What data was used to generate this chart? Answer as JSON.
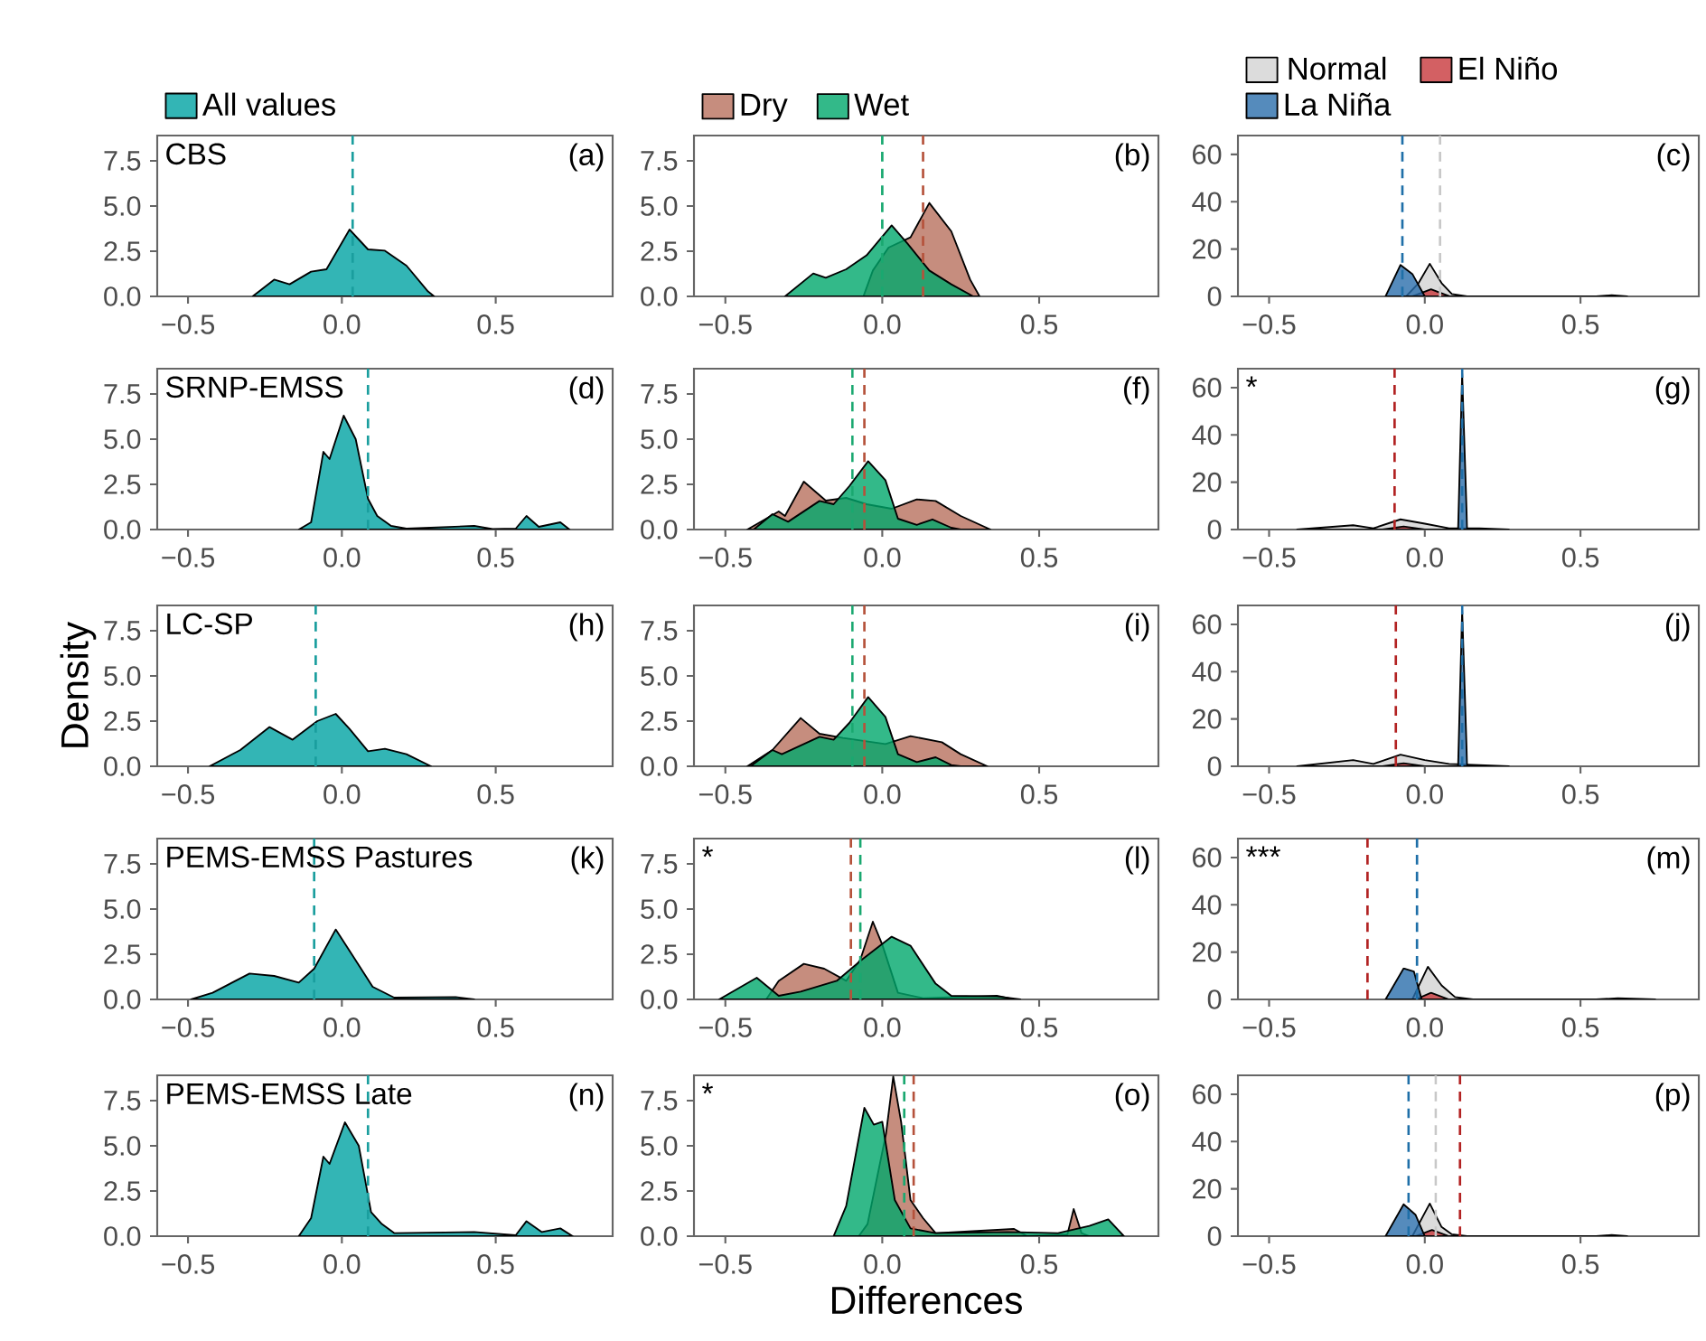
{
  "chart_data": [
    {
      "type": "area",
      "title": "CBS",
      "annotations": [
        "(a)"
      ],
      "legend": "top",
      "xlim": [
        -0.6,
        0.88
      ],
      "ylim": [
        0,
        8.9
      ],
      "xticks": [
        {
          "value": -0.5,
          "label": "−0.5"
        },
        {
          "value": 0,
          "label": "0.0"
        },
        {
          "value": 0.5,
          "label": "0.5"
        }
      ],
      "yticks": [
        {
          "value": 0,
          "label": "0.0"
        },
        {
          "value": 2.5,
          "label": "2.5"
        },
        {
          "value": 5,
          "label": "5.0"
        },
        {
          "value": 7.5,
          "label": "7.5"
        }
      ],
      "series": [
        {
          "name": "All values",
          "color": "#00a3a3",
          "x": [
            -0.29,
            -0.22,
            -0.17,
            -0.1,
            -0.05,
            0.025,
            0.085,
            0.14,
            0.21,
            0.28,
            0.3
          ],
          "values": [
            0,
            0.93,
            0.67,
            1.37,
            1.5,
            3.7,
            2.6,
            2.53,
            1.7,
            0.27,
            0
          ]
        }
      ],
      "ref_lines": [
        {
          "axis": "x",
          "value": 0.035,
          "color": "#1a9e9e",
          "line_style": "dashed"
        }
      ]
    },
    {
      "type": "area",
      "annotations": [
        "(b)"
      ],
      "legend": "top",
      "xlim": [
        -0.6,
        0.88
      ],
      "ylim": [
        0,
        8.9
      ],
      "xticks": [
        {
          "value": -0.5,
          "label": "−0.5"
        },
        {
          "value": 0,
          "label": "0.0"
        },
        {
          "value": 0.5,
          "label": "0.5"
        }
      ],
      "yticks": [
        {
          "value": 0,
          "label": "0.0"
        },
        {
          "value": 2.5,
          "label": "2.5"
        },
        {
          "value": 5,
          "label": "5.0"
        },
        {
          "value": 7.5,
          "label": "7.5"
        }
      ],
      "series": [
        {
          "name": "Dry",
          "color": "#b8705e",
          "x": [
            -0.06,
            -0.03,
            0.02,
            0.09,
            0.15,
            0.22,
            0.28,
            0.31
          ],
          "values": [
            0,
            1.43,
            2.7,
            3.27,
            5.17,
            3.6,
            0.93,
            0
          ]
        },
        {
          "name": "Wet",
          "color": "#00a86b",
          "x": [
            -0.31,
            -0.22,
            -0.18,
            -0.115,
            -0.05,
            0.03,
            0.08,
            0.15,
            0.22,
            0.29
          ],
          "values": [
            0,
            1.27,
            1.03,
            1.5,
            2.27,
            3.93,
            2.93,
            1.43,
            0.67,
            0
          ]
        }
      ],
      "ref_lines": [
        {
          "axis": "x",
          "value": 0.13,
          "color": "#b5523b",
          "line_style": "dashed"
        },
        {
          "axis": "x",
          "value": 0.0,
          "color": "#1aa870",
          "line_style": "dashed"
        }
      ]
    },
    {
      "type": "area",
      "annotations": [
        "(c)"
      ],
      "legend": "top",
      "xlim": [
        -0.6,
        0.88
      ],
      "ylim": [
        0,
        68
      ],
      "xticks": [
        {
          "value": -0.5,
          "label": "−0.5"
        },
        {
          "value": 0,
          "label": "0.0"
        },
        {
          "value": 0.5,
          "label": "0.5"
        }
      ],
      "yticks": [
        0,
        20,
        40,
        60
      ],
      "series": [
        {
          "name": "Normal",
          "color": "#d3d3d3",
          "x": [
            -0.06,
            -0.02,
            0.016,
            0.054,
            0.087,
            0.136,
            0.55,
            0.6,
            0.65
          ],
          "values": [
            0,
            5.6,
            13.8,
            5.6,
            1.0,
            0,
            0,
            0.5,
            0
          ]
        },
        {
          "name": "El Niño",
          "color": "#c8383c",
          "x": [
            -0.04,
            0.02,
            0.08
          ],
          "values": [
            0,
            3.0,
            0
          ]
        },
        {
          "name": "La Niña",
          "color": "#2a6eab",
          "x": [
            -0.126,
            -0.078,
            -0.04,
            0.0
          ],
          "values": [
            0,
            13.3,
            9.5,
            0
          ]
        }
      ],
      "ref_lines": [
        {
          "axis": "x",
          "value": -0.072,
          "color": "#1f6fa8",
          "line_style": "dashed"
        },
        {
          "axis": "x",
          "value": 0.049,
          "color": "#c8c8c8",
          "line_style": "dashed"
        }
      ]
    },
    {
      "type": "area",
      "title": "SRNP-EMSS",
      "annotations": [
        "(d)"
      ],
      "xlim": [
        -0.6,
        0.88
      ],
      "ylim": [
        0,
        8.9
      ],
      "xticks": [
        {
          "value": -0.5,
          "label": "−0.5"
        },
        {
          "value": 0,
          "label": "0.0"
        },
        {
          "value": 0.5,
          "label": "0.5"
        }
      ],
      "yticks": [
        {
          "value": 0,
          "label": "0.0"
        },
        {
          "value": 2.5,
          "label": "2.5"
        },
        {
          "value": 5,
          "label": "5.0"
        },
        {
          "value": 7.5,
          "label": "7.5"
        }
      ],
      "series": [
        {
          "color": "#00a3a3",
          "x": [
            -0.14,
            -0.1,
            -0.06,
            -0.04,
            0.006,
            0.045,
            0.085,
            0.115,
            0.16,
            0.21,
            0.43,
            0.49,
            0.565,
            0.6,
            0.64,
            0.71,
            0.74
          ],
          "values": [
            0,
            0.4,
            4.3,
            3.9,
            6.3,
            5.0,
            1.7,
            0.75,
            0.2,
            0.05,
            0.2,
            0.03,
            0.05,
            0.75,
            0.15,
            0.4,
            0
          ]
        }
      ],
      "ref_lines": [
        {
          "axis": "x",
          "value": 0.085,
          "color": "#1a9e9e",
          "line_style": "dashed"
        }
      ]
    },
    {
      "type": "area",
      "annotations": [
        "(f)"
      ],
      "xlim": [
        -0.6,
        0.88
      ],
      "ylim": [
        0,
        8.9
      ],
      "xticks": [
        {
          "value": -0.5,
          "label": "−0.5"
        },
        {
          "value": 0,
          "label": "0.0"
        },
        {
          "value": 0.5,
          "label": "0.5"
        }
      ],
      "yticks": [
        {
          "value": 0,
          "label": "0.0"
        },
        {
          "value": 2.5,
          "label": "2.5"
        },
        {
          "value": 5,
          "label": "5.0"
        },
        {
          "value": 7.5,
          "label": "7.5"
        }
      ],
      "series": [
        {
          "color": "#b8705e",
          "x": [
            -0.43,
            -0.33,
            -0.31,
            -0.25,
            -0.18,
            -0.115,
            -0.05,
            0.03,
            0.11,
            0.17,
            0.25,
            0.345
          ],
          "values": [
            0,
            1.0,
            0.75,
            2.65,
            1.6,
            1.75,
            1.4,
            1.15,
            1.67,
            1.58,
            0.75,
            0
          ]
        },
        {
          "color": "#00a86b",
          "x": [
            -0.41,
            -0.35,
            -0.3,
            -0.2,
            -0.155,
            -0.105,
            -0.045,
            0.01,
            0.05,
            0.11,
            0.16,
            0.22,
            0.25
          ],
          "values": [
            0,
            0.85,
            0.43,
            1.58,
            1.4,
            2.4,
            3.78,
            2.73,
            0.6,
            0.26,
            0.56,
            0.1,
            0
          ]
        }
      ],
      "ref_lines": [
        {
          "axis": "x",
          "value": -0.057,
          "color": "#b5523b",
          "line_style": "dashed"
        },
        {
          "axis": "x",
          "value": -0.095,
          "color": "#1aa870",
          "line_style": "dashed"
        }
      ]
    },
    {
      "type": "area",
      "annotations": [
        "(g)",
        "*"
      ],
      "xlim": [
        -0.6,
        0.88
      ],
      "ylim": [
        0,
        68
      ],
      "xticks": [
        {
          "value": -0.5,
          "label": "−0.5"
        },
        {
          "value": 0,
          "label": "0.0"
        },
        {
          "value": 0.5,
          "label": "0.5"
        }
      ],
      "yticks": [
        0,
        20,
        40,
        60
      ],
      "series": [
        {
          "color": "#d3d3d3",
          "x": [
            -0.41,
            -0.23,
            -0.165,
            -0.078,
            0,
            0.078,
            0.175,
            0.27
          ],
          "values": [
            0,
            1.8,
            0.5,
            4.3,
            2.5,
            0.5,
            0.5,
            0
          ]
        },
        {
          "color": "#c8383c",
          "x": [
            -0.136,
            -0.068,
            0
          ],
          "values": [
            0,
            1.3,
            0
          ]
        },
        {
          "color": "#2a6eab",
          "x": [
            0.107,
            0.12,
            0.136
          ],
          "values": [
            0,
            66,
            0
          ]
        }
      ],
      "ref_lines": [
        {
          "axis": "x",
          "value": -0.097,
          "color": "#b22222",
          "line_style": "dashed"
        },
        {
          "axis": "x",
          "value": 0.12,
          "color": "#1f6fa8",
          "line_style": "dashed"
        }
      ]
    },
    {
      "type": "area",
      "title": "LC-SP",
      "ylabel": "Density",
      "annotations": [
        "(h)"
      ],
      "xlim": [
        -0.6,
        0.88
      ],
      "ylim": [
        0,
        8.9
      ],
      "xticks": [
        {
          "value": -0.5,
          "label": "−0.5"
        },
        {
          "value": 0,
          "label": "0.0"
        },
        {
          "value": 0.5,
          "label": "0.5"
        }
      ],
      "yticks": [
        {
          "value": 0,
          "label": "0.0"
        },
        {
          "value": 2.5,
          "label": "2.5"
        },
        {
          "value": 5,
          "label": "5.0"
        },
        {
          "value": 7.5,
          "label": "7.5"
        }
      ],
      "series": [
        {
          "color": "#00a3a3",
          "x": [
            -0.43,
            -0.33,
            -0.235,
            -0.16,
            -0.08,
            -0.02,
            0.025,
            0.085,
            0.14,
            0.21,
            0.29
          ],
          "values": [
            0,
            0.9,
            2.17,
            1.47,
            2.5,
            2.9,
            2.07,
            0.83,
            0.97,
            0.67,
            0
          ]
        }
      ],
      "ref_lines": [
        {
          "axis": "x",
          "value": -0.085,
          "color": "#1a9e9e",
          "line_style": "dashed"
        }
      ]
    },
    {
      "type": "area",
      "annotations": [
        "(i)"
      ],
      "xlim": [
        -0.6,
        0.88
      ],
      "ylim": [
        0,
        8.9
      ],
      "xticks": [
        {
          "value": -0.5,
          "label": "−0.5"
        },
        {
          "value": 0,
          "label": "0.0"
        },
        {
          "value": 0.5,
          "label": "0.5"
        }
      ],
      "yticks": [
        {
          "value": 0,
          "label": "0.0"
        },
        {
          "value": 2.5,
          "label": "2.5"
        },
        {
          "value": 5,
          "label": "5.0"
        },
        {
          "value": 7.5,
          "label": "7.5"
        }
      ],
      "series": [
        {
          "color": "#b8705e",
          "x": [
            -0.43,
            -0.35,
            -0.26,
            -0.2,
            -0.125,
            0.01,
            0.09,
            0.19,
            0.25,
            0.335
          ],
          "values": [
            0,
            0.9,
            2.67,
            1.8,
            1.57,
            1.23,
            1.67,
            1.33,
            0.67,
            0
          ]
        },
        {
          "color": "#00a86b",
          "x": [
            -0.42,
            -0.35,
            -0.32,
            -0.2,
            -0.155,
            -0.105,
            -0.045,
            0.01,
            0.05,
            0.11,
            0.17,
            0.22,
            0.25
          ],
          "values": [
            0,
            0.9,
            0.67,
            1.63,
            1.47,
            2.4,
            3.83,
            2.73,
            0.67,
            0.23,
            0.5,
            0.07,
            0
          ]
        }
      ],
      "ref_lines": [
        {
          "axis": "x",
          "value": -0.057,
          "color": "#b5523b",
          "line_style": "dashed"
        },
        {
          "axis": "x",
          "value": -0.095,
          "color": "#1aa870",
          "line_style": "dashed"
        }
      ]
    },
    {
      "type": "area",
      "annotations": [
        "(j)"
      ],
      "xlim": [
        -0.6,
        0.88
      ],
      "ylim": [
        0,
        68
      ],
      "xticks": [
        {
          "value": -0.5,
          "label": "−0.5"
        },
        {
          "value": 0,
          "label": "0.0"
        },
        {
          "value": 0.5,
          "label": "0.5"
        }
      ],
      "yticks": [
        0,
        20,
        40,
        60
      ],
      "series": [
        {
          "color": "#d3d3d3",
          "x": [
            -0.41,
            -0.23,
            -0.165,
            -0.078,
            0,
            0.078,
            0.27
          ],
          "values": [
            0,
            2.6,
            1.0,
            4.9,
            2.6,
            1.0,
            0
          ]
        },
        {
          "color": "#c8383c",
          "x": [
            -0.136,
            -0.068,
            0
          ],
          "values": [
            0,
            1.3,
            0
          ]
        },
        {
          "color": "#2a6eab",
          "x": [
            0.107,
            0.12,
            0.136
          ],
          "values": [
            0,
            66,
            0
          ]
        }
      ],
      "ref_lines": [
        {
          "axis": "x",
          "value": -0.093,
          "color": "#b22222",
          "line_style": "dashed"
        },
        {
          "axis": "x",
          "value": 0.12,
          "color": "#1f6fa8",
          "line_style": "dashed"
        }
      ]
    },
    {
      "type": "area",
      "title": "PEMS-EMSS Pastures",
      "annotations": [
        "(k)"
      ],
      "xlim": [
        -0.6,
        0.88
      ],
      "ylim": [
        0,
        8.9
      ],
      "xticks": [
        {
          "value": -0.5,
          "label": "−0.5"
        },
        {
          "value": 0,
          "label": "0.0"
        },
        {
          "value": 0.5,
          "label": "0.5"
        }
      ],
      "yticks": [
        {
          "value": 0,
          "label": "0.0"
        },
        {
          "value": 2.5,
          "label": "2.5"
        },
        {
          "value": 5,
          "label": "5.0"
        },
        {
          "value": 7.5,
          "label": "7.5"
        }
      ],
      "series": [
        {
          "color": "#00a3a3",
          "x": [
            -0.49,
            -0.42,
            -0.3,
            -0.22,
            -0.14,
            -0.09,
            -0.02,
            0.035,
            0.1,
            0.17,
            0.37,
            0.43
          ],
          "values": [
            0,
            0.37,
            1.43,
            1.3,
            0.93,
            1.7,
            3.87,
            2.43,
            0.7,
            0.1,
            0.13,
            0
          ]
        }
      ],
      "ref_lines": [
        {
          "axis": "x",
          "value": -0.09,
          "color": "#1a9e9e",
          "line_style": "dashed"
        }
      ]
    },
    {
      "type": "area",
      "annotations": [
        "(l)",
        "*"
      ],
      "xlim": [
        -0.6,
        0.88
      ],
      "ylim": [
        0,
        8.9
      ],
      "xticks": [
        {
          "value": -0.5,
          "label": "−0.5"
        },
        {
          "value": 0,
          "label": "0.0"
        },
        {
          "value": 0.5,
          "label": "0.5"
        }
      ],
      "yticks": [
        {
          "value": 0,
          "label": "0.0"
        },
        {
          "value": 2.5,
          "label": "2.5"
        },
        {
          "value": 5,
          "label": "5.0"
        },
        {
          "value": 7.5,
          "label": "7.5"
        }
      ],
      "series": [
        {
          "color": "#b8705e",
          "x": [
            -0.37,
            -0.33,
            -0.25,
            -0.185,
            -0.115,
            -0.07,
            -0.03,
            0.0,
            0.05,
            0.13,
            0.365,
            0.42
          ],
          "values": [
            0,
            1.03,
            1.97,
            1.7,
            1.03,
            2.2,
            4.3,
            3.03,
            0.37,
            0.07,
            0.2,
            0
          ]
        },
        {
          "color": "#00a86b",
          "x": [
            -0.52,
            -0.4,
            -0.33,
            -0.26,
            -0.145,
            -0.065,
            0.03,
            0.09,
            0.17,
            0.22,
            0.365,
            0.44
          ],
          "values": [
            0,
            1.2,
            0.2,
            0.43,
            1.03,
            2.2,
            3.47,
            2.97,
            0.87,
            0.2,
            0.17,
            0
          ]
        }
      ],
      "ref_lines": [
        {
          "axis": "x",
          "value": -0.1,
          "color": "#b5523b",
          "line_style": "dashed"
        },
        {
          "axis": "x",
          "value": -0.07,
          "color": "#1aa870",
          "line_style": "dashed"
        }
      ]
    },
    {
      "type": "area",
      "annotations": [
        "(m)",
        "***"
      ],
      "xlim": [
        -0.6,
        0.88
      ],
      "ylim": [
        0,
        68
      ],
      "xticks": [
        {
          "value": -0.5,
          "label": "−0.5"
        },
        {
          "value": 0,
          "label": "0.0"
        },
        {
          "value": 0.5,
          "label": "0.5"
        }
      ],
      "yticks": [
        0,
        20,
        40,
        60
      ],
      "series": [
        {
          "color": "#d3d3d3",
          "x": [
            -0.04,
            0.01,
            0.054,
            0.097,
            0.155,
            0.55,
            0.62,
            0.74
          ],
          "values": [
            0,
            13.8,
            5.9,
            1.0,
            0,
            0,
            0.5,
            0
          ]
        },
        {
          "color": "#c8383c",
          "x": [
            -0.03,
            0.02,
            0.078
          ],
          "values": [
            0,
            2.8,
            0
          ]
        },
        {
          "color": "#2a6eab",
          "x": [
            -0.126,
            -0.068,
            -0.035,
            -0.01
          ],
          "values": [
            0,
            13.1,
            11.8,
            0
          ]
        }
      ],
      "ref_lines": [
        {
          "axis": "x",
          "value": -0.184,
          "color": "#b22222",
          "line_style": "dashed"
        },
        {
          "axis": "x",
          "value": -0.025,
          "color": "#1f6fa8",
          "line_style": "dashed"
        }
      ]
    },
    {
      "type": "area",
      "title": "PEMS-EMSS Late",
      "annotations": [
        "(n)"
      ],
      "xlim": [
        -0.6,
        0.88
      ],
      "ylim": [
        0,
        8.9
      ],
      "xticks": [
        {
          "value": -0.5,
          "label": "−0.5"
        },
        {
          "value": 0,
          "label": "0.0"
        },
        {
          "value": 0.5,
          "label": "0.5"
        }
      ],
      "yticks": [
        {
          "value": 0,
          "label": "0.0"
        },
        {
          "value": 2.5,
          "label": "2.5"
        },
        {
          "value": 5,
          "label": "5.0"
        },
        {
          "value": 7.5,
          "label": "7.5"
        }
      ],
      "series": [
        {
          "color": "#00a3a3",
          "x": [
            -0.14,
            -0.1,
            -0.06,
            -0.04,
            0.01,
            0.055,
            0.095,
            0.13,
            0.17,
            0.43,
            0.565,
            0.6,
            0.65,
            0.71,
            0.75
          ],
          "values": [
            0,
            1.0,
            4.4,
            4.0,
            6.3,
            5.0,
            1.33,
            0.67,
            0.17,
            0.23,
            0.05,
            0.83,
            0.23,
            0.43,
            0
          ]
        }
      ],
      "ref_lines": [
        {
          "axis": "x",
          "value": 0.085,
          "color": "#1a9e9e",
          "line_style": "dashed"
        }
      ]
    },
    {
      "type": "area",
      "xlabel": "Differences",
      "annotations": [
        "(o)",
        "*"
      ],
      "xlim": [
        -0.6,
        0.88
      ],
      "ylim": [
        0,
        8.9
      ],
      "xticks": [
        {
          "value": -0.5,
          "label": "−0.5"
        },
        {
          "value": 0,
          "label": "0.0"
        },
        {
          "value": 0.5,
          "label": "0.5"
        }
      ],
      "yticks": [
        {
          "value": 0,
          "label": "0.0"
        },
        {
          "value": 2.5,
          "label": "2.5"
        },
        {
          "value": 5,
          "label": "5.0"
        },
        {
          "value": 7.5,
          "label": "7.5"
        }
      ],
      "series": [
        {
          "color": "#b8705e",
          "x": [
            -0.075,
            -0.047,
            0.012,
            0.035,
            0.06,
            0.09,
            0.13,
            0.17,
            0.42,
            0.46,
            0.59,
            0.61,
            0.635,
            0.66
          ],
          "values": [
            0,
            0.67,
            5.67,
            8.83,
            6.33,
            2.0,
            1.0,
            0.17,
            0.4,
            0.02,
            0.1,
            1.5,
            0.17,
            0
          ]
        },
        {
          "color": "#00a86b",
          "x": [
            -0.155,
            -0.115,
            -0.057,
            -0.027,
            0.0,
            0.04,
            0.09,
            0.17,
            0.4,
            0.56,
            0.66,
            0.72,
            0.77
          ],
          "values": [
            0,
            1.67,
            7.1,
            6.17,
            6.33,
            2.0,
            0.43,
            0.17,
            0.23,
            0.17,
            0.57,
            0.93,
            0
          ]
        }
      ],
      "ref_lines": [
        {
          "axis": "x",
          "value": 0.1,
          "color": "#b5523b",
          "line_style": "dashed"
        },
        {
          "axis": "x",
          "value": 0.07,
          "color": "#1aa870",
          "line_style": "dashed"
        }
      ]
    },
    {
      "type": "area",
      "annotations": [
        "(p)"
      ],
      "xlim": [
        -0.6,
        0.88
      ],
      "ylim": [
        0,
        68
      ],
      "xticks": [
        {
          "value": -0.5,
          "label": "−0.5"
        },
        {
          "value": 0,
          "label": "0.0"
        },
        {
          "value": 0.5,
          "label": "0.5"
        }
      ],
      "yticks": [
        0,
        20,
        40,
        60
      ],
      "series": [
        {
          "color": "#d3d3d3",
          "x": [
            -0.04,
            0.016,
            0.054,
            0.087,
            0.136,
            0.55,
            0.6,
            0.65
          ],
          "values": [
            0,
            13.8,
            3.9,
            0.8,
            0,
            0,
            0.5,
            0
          ]
        },
        {
          "color": "#c8383c",
          "x": [
            -0.03,
            0.023,
            0.078
          ],
          "values": [
            0,
            2.6,
            0
          ]
        },
        {
          "color": "#2a6eab",
          "x": [
            -0.126,
            -0.068,
            -0.03,
            0.0
          ],
          "values": [
            0,
            13.5,
            9.1,
            0
          ]
        }
      ],
      "ref_lines": [
        {
          "axis": "x",
          "value": -0.052,
          "color": "#1f6fa8",
          "line_style": "dashed"
        },
        {
          "axis": "x",
          "value": 0.035,
          "color": "#c8c8c8",
          "line_style": "dashed"
        },
        {
          "axis": "x",
          "value": 0.113,
          "color": "#b22222",
          "line_style": "dashed"
        }
      ]
    }
  ]
}
